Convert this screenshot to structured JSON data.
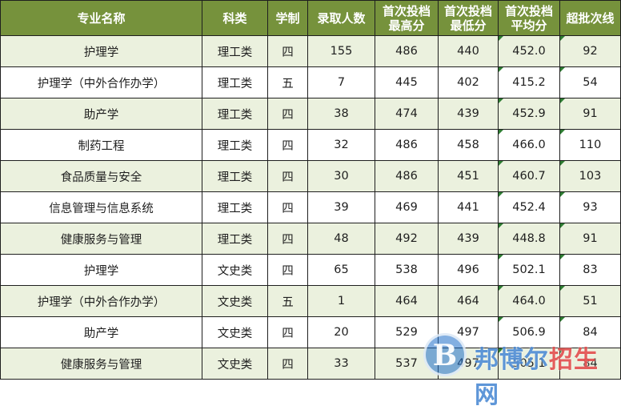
{
  "headers": [
    {
      "line1": "专业名称",
      "line2": ""
    },
    {
      "line1": "科类",
      "line2": ""
    },
    {
      "line1": "学制",
      "line2": ""
    },
    {
      "line1": "录取人数",
      "line2": ""
    },
    {
      "line1": "首次投档",
      "line2": "最高分"
    },
    {
      "line1": "首次投档",
      "line2": "最低分"
    },
    {
      "line1": "首次投档",
      "line2": "平均分"
    },
    {
      "line1": "超批次线",
      "line2": ""
    }
  ],
  "rows": [
    [
      "护理学",
      "理工类",
      "四",
      "155",
      "486",
      "440",
      "452.0",
      "92"
    ],
    [
      "护理学（中外合作办学）",
      "理工类",
      "五",
      "7",
      "445",
      "402",
      "415.2",
      "54"
    ],
    [
      "助产学",
      "理工类",
      "四",
      "38",
      "474",
      "439",
      "452.9",
      "91"
    ],
    [
      "制药工程",
      "理工类",
      "四",
      "32",
      "486",
      "458",
      "466.0",
      "110"
    ],
    [
      "食品质量与安全",
      "理工类",
      "四",
      "30",
      "486",
      "451",
      "460.7",
      "103"
    ],
    [
      "信息管理与信息系统",
      "理工类",
      "四",
      "39",
      "469",
      "441",
      "452.4",
      "93"
    ],
    [
      "健康服务与管理",
      "理工类",
      "四",
      "48",
      "492",
      "439",
      "448.8",
      "91"
    ],
    [
      "护理学",
      "文史类",
      "四",
      "65",
      "538",
      "496",
      "502.1",
      "83"
    ],
    [
      "护理学（中外合作办学）",
      "文史类",
      "五",
      "1",
      "464",
      "464",
      "464.0",
      "51"
    ],
    [
      "助产学",
      "文史类",
      "四",
      "20",
      "529",
      "497",
      "506.9",
      "84"
    ],
    [
      "健康服务与管理",
      "文史类",
      "四",
      "33",
      "537",
      "497",
      "505.1",
      "84"
    ]
  ],
  "watermark": {
    "logo_letter": "B",
    "text_blue": "邦博尔",
    "text_red": "招生",
    "text_end": "网"
  },
  "colors": {
    "header_bg": "#76923c",
    "alt_row_bg": "#ebf1de",
    "border": "#1f1f1f",
    "marker": "#2e7d32"
  }
}
